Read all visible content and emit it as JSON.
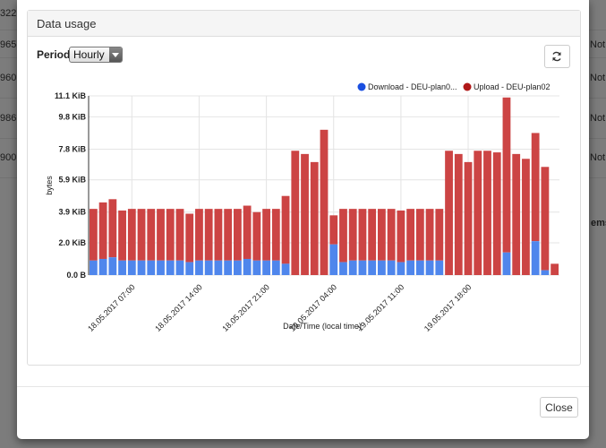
{
  "background": {
    "left_values": [
      "322",
      "965",
      "960",
      "986",
      "900"
    ],
    "right_values": [
      "Not",
      "Not",
      "Not",
      "Not",
      "Not"
    ],
    "ems_text": "ems"
  },
  "panel": {
    "title": "Data usage"
  },
  "controls": {
    "period_label": "Period",
    "period_value": "Hourly",
    "refresh_icon": "refresh-icon"
  },
  "footer": {
    "close_label": "Close"
  },
  "colors": {
    "download": "#4f86ec",
    "upload": "#cc4444",
    "download_legend": "#1a4fe0",
    "upload_legend": "#b01818"
  },
  "chart_data": {
    "type": "bar",
    "stacked": true,
    "ylabel": "bytes",
    "xlabel": "Date/Time (local time)",
    "y_ticks": [
      "0.0 B",
      "2.0 KiB",
      "3.9 KiB",
      "5.9 KiB",
      "7.8 KiB",
      "9.8 KiB",
      "11.1 KiB"
    ],
    "y_tick_values": [
      0,
      2.0,
      3.9,
      5.9,
      7.8,
      9.8,
      11.1
    ],
    "ylim": [
      0,
      11.1
    ],
    "x_tick_labels": [
      "18.05.2017 07:00",
      "18.05.2017 14:00",
      "18.05.2017 21:00",
      "19.05.2017 04:00",
      "19.05.2017 11:00",
      "19.05.2017 18:00"
    ],
    "x_tick_indices": [
      4,
      11,
      18,
      25,
      32,
      39
    ],
    "legend": {
      "position": "top-right"
    },
    "grid": true,
    "series": [
      {
        "name": "Download - DEU-plan0...",
        "values": [
          0.9,
          1.0,
          1.1,
          0.9,
          0.9,
          0.9,
          0.9,
          0.9,
          0.9,
          0.9,
          0.8,
          0.9,
          0.9,
          0.9,
          0.9,
          0.9,
          1.0,
          0.9,
          0.9,
          0.9,
          0.7,
          0,
          0,
          0,
          0,
          1.9,
          0.8,
          0.9,
          0.9,
          0.9,
          0.9,
          0.9,
          0.8,
          0.9,
          0.9,
          0.9,
          0.9,
          0,
          0,
          0,
          0,
          0,
          0,
          1.4,
          0,
          0,
          2.1,
          0.3,
          0
        ]
      },
      {
        "name": "Upload - DEU-plan02",
        "values": [
          3.2,
          3.5,
          3.6,
          3.1,
          3.2,
          3.2,
          3.2,
          3.2,
          3.2,
          3.2,
          3.0,
          3.2,
          3.2,
          3.2,
          3.2,
          3.2,
          3.3,
          3.0,
          3.2,
          3.2,
          4.2,
          7.7,
          7.5,
          7.0,
          9.0,
          1.8,
          3.3,
          3.2,
          3.2,
          3.2,
          3.2,
          3.2,
          3.2,
          3.2,
          3.2,
          3.2,
          3.2,
          7.7,
          7.5,
          7.0,
          7.7,
          7.7,
          7.6,
          9.6,
          7.5,
          7.2,
          6.7,
          6.4,
          0.7
        ]
      }
    ]
  }
}
